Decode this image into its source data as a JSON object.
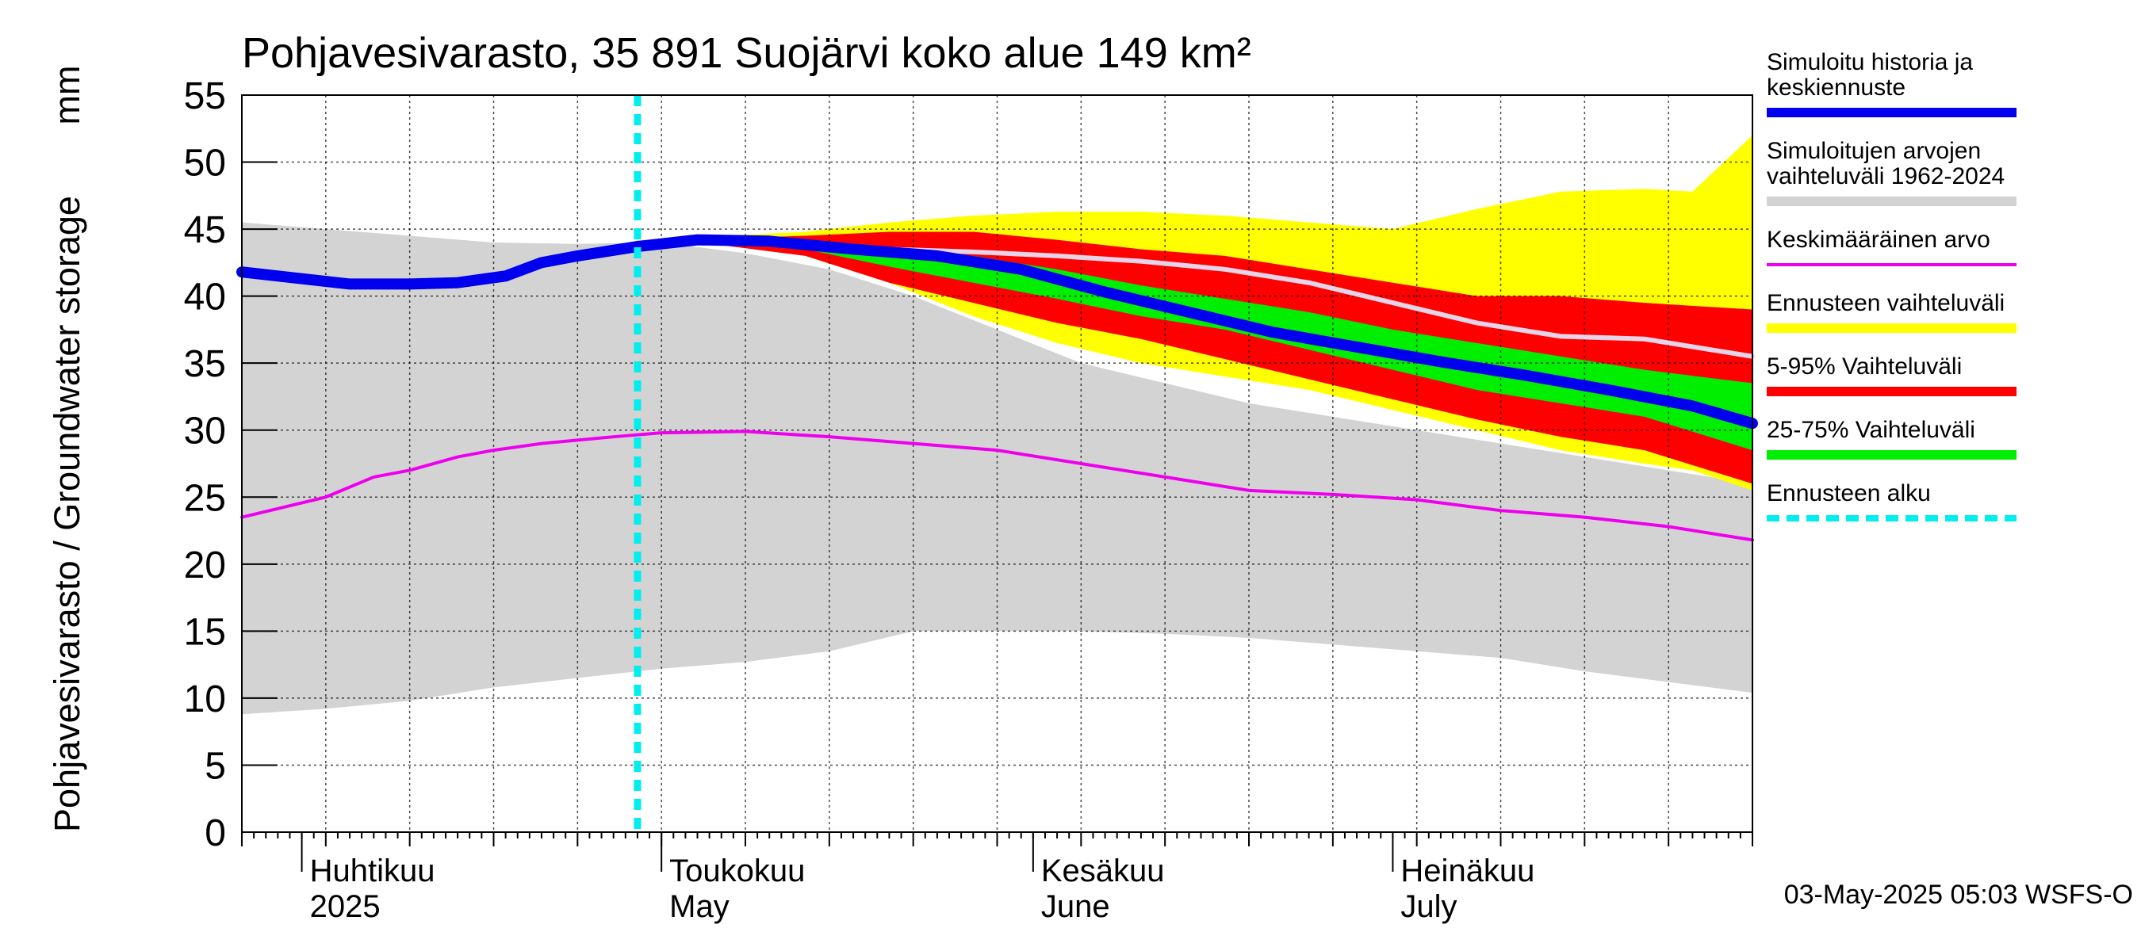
{
  "chart_data": {
    "type": "area",
    "title": "Pohjavesivarasto, 35 891 Suojärvi koko alue 149 km²",
    "ylabel": "Pohjavesivarasto / Groundwater storage",
    "yunit": "mm",
    "ylim": [
      0,
      55
    ],
    "yticks": [
      0,
      5,
      10,
      15,
      20,
      25,
      30,
      35,
      40,
      45,
      50,
      55
    ],
    "xlim": [
      "2025-03-27",
      "2025-07-31"
    ],
    "grid": true,
    "legend_position": "right",
    "x_labels": [
      {
        "fi": "Huhtikuu",
        "en": "2025",
        "date": "2025-04-01"
      },
      {
        "fi": "Toukokuu",
        "en": "May",
        "date": "2025-05-01"
      },
      {
        "fi": "Kesäkuu",
        "en": "June",
        "date": "2025-06-01"
      },
      {
        "fi": "Heinäkuu",
        "en": "July",
        "date": "2025-07-01"
      }
    ],
    "forecast_start": "2025-04-29",
    "footer": "03-May-2025 05:03 WSFS-O",
    "legend": [
      {
        "label": "Simuloitu historia ja keskiennuste",
        "color": "#0000ee",
        "style": "thick"
      },
      {
        "label": "Simuloitujen arvojen vaihteluväli 1962-2024",
        "color": "#d3d3d3",
        "style": "thick"
      },
      {
        "label": "Keskimääräinen arvo",
        "color": "#ee00ee",
        "style": "thin"
      },
      {
        "label": "Ennusteen vaihteluväli",
        "color": "#ffff00",
        "style": "thick"
      },
      {
        "label": "5-95% Vaihteluväli",
        "color": "#ff0000",
        "style": "thick"
      },
      {
        "label": "25-75% Vaihteluväli",
        "color": "#00ee00",
        "style": "thick"
      },
      {
        "label": "Ennusteen alku",
        "color": "#00eeee",
        "style": "dashed"
      }
    ],
    "series": {
      "history_range": {
        "name": "Simuloitujen arvojen vaihteluväli 1962-2024",
        "color": "#d3d3d3",
        "x": [
          "2025-03-27",
          "2025-04-03",
          "2025-04-10",
          "2025-04-17",
          "2025-04-24",
          "2025-05-01",
          "2025-05-08",
          "2025-05-15",
          "2025-05-22",
          "2025-05-29",
          "2025-06-05",
          "2025-06-12",
          "2025-06-19",
          "2025-06-26",
          "2025-07-03",
          "2025-07-10",
          "2025-07-17",
          "2025-07-24",
          "2025-07-31"
        ],
        "upper": [
          45.5,
          45.0,
          44.5,
          44.0,
          43.9,
          44.0,
          43.2,
          42.0,
          40.0,
          37.5,
          35.0,
          33.5,
          32.0,
          31.0,
          30.0,
          29.0,
          28.0,
          27.0,
          26.0
        ],
        "lower": [
          8.8,
          9.2,
          9.8,
          10.8,
          11.5,
          12.2,
          12.7,
          13.5,
          15.0,
          15.0,
          15.0,
          14.8,
          14.5,
          14.0,
          13.5,
          13.0,
          12.0,
          11.2,
          10.4
        ]
      },
      "forecast_range": {
        "name": "Ennusteen vaihteluväli",
        "color": "#ffff00",
        "x": [
          "2025-04-29",
          "2025-05-06",
          "2025-05-13",
          "2025-05-20",
          "2025-05-27",
          "2025-06-03",
          "2025-06-10",
          "2025-06-17",
          "2025-06-24",
          "2025-07-01",
          "2025-07-08",
          "2025-07-15",
          "2025-07-22",
          "2025-07-26",
          "2025-07-31"
        ],
        "upper": [
          44.0,
          44.5,
          44.8,
          45.5,
          46.0,
          46.3,
          46.3,
          46.0,
          45.5,
          45.0,
          46.5,
          47.8,
          48.0,
          47.8,
          52.0
        ],
        "lower": [
          44.0,
          44.0,
          43.0,
          41.0,
          38.5,
          36.5,
          35.0,
          34.0,
          33.0,
          31.5,
          30.0,
          28.5,
          27.5,
          27.0,
          25.5
        ]
      },
      "p5_95": {
        "name": "5-95% Vaihteluväli",
        "color": "#ff0000",
        "x": [
          "2025-04-29",
          "2025-05-06",
          "2025-05-13",
          "2025-05-20",
          "2025-05-27",
          "2025-06-03",
          "2025-06-10",
          "2025-06-17",
          "2025-06-24",
          "2025-07-01",
          "2025-07-08",
          "2025-07-15",
          "2025-07-22",
          "2025-07-31"
        ],
        "upper": [
          44.0,
          44.3,
          44.5,
          44.8,
          44.8,
          44.2,
          43.5,
          43.0,
          42.0,
          41.0,
          40.0,
          40.0,
          39.5,
          39.0
        ],
        "lower": [
          44.0,
          43.8,
          43.0,
          41.0,
          39.5,
          38.0,
          36.8,
          35.3,
          33.8,
          32.3,
          30.8,
          29.5,
          28.5,
          26.0
        ]
      },
      "p25_75": {
        "name": "25-75% Vaihteluväli",
        "color": "#00ee00",
        "x": [
          "2025-04-29",
          "2025-05-06",
          "2025-05-13",
          "2025-05-20",
          "2025-05-27",
          "2025-06-03",
          "2025-06-10",
          "2025-06-17",
          "2025-06-24",
          "2025-07-01",
          "2025-07-08",
          "2025-07-15",
          "2025-07-22",
          "2025-07-31"
        ],
        "upper": [
          44.0,
          44.2,
          44.0,
          43.5,
          43.0,
          42.0,
          40.8,
          39.8,
          38.8,
          37.5,
          36.5,
          35.5,
          34.5,
          33.5
        ],
        "lower": [
          44.0,
          44.0,
          43.5,
          42.2,
          41.0,
          39.8,
          38.5,
          37.5,
          36.0,
          34.5,
          33.0,
          32.0,
          31.0,
          28.5
        ]
      },
      "forecast_mean": {
        "name": "Simuloitu historia ja keskiennuste",
        "color": "#0000ee",
        "x": [
          "2025-03-27",
          "2025-04-01",
          "2025-04-05",
          "2025-04-10",
          "2025-04-14",
          "2025-04-18",
          "2025-04-21",
          "2025-04-24",
          "2025-04-29",
          "2025-05-04",
          "2025-05-10",
          "2025-05-17",
          "2025-05-24",
          "2025-05-31",
          "2025-06-07",
          "2025-06-14",
          "2025-06-21",
          "2025-06-28",
          "2025-07-05",
          "2025-07-12",
          "2025-07-19",
          "2025-07-26",
          "2025-07-31"
        ],
        "y": [
          41.8,
          41.3,
          40.9,
          40.9,
          41.0,
          41.5,
          42.5,
          43.0,
          43.7,
          44.2,
          44.1,
          43.5,
          43.0,
          42.0,
          40.3,
          38.8,
          37.3,
          36.2,
          35.1,
          34.1,
          33.0,
          31.8,
          30.5
        ]
      },
      "mean_value": {
        "name": "Keskimääräinen arvo",
        "color": "#ee00ee",
        "x": [
          "2025-03-27",
          "2025-04-03",
          "2025-04-07",
          "2025-04-10",
          "2025-04-14",
          "2025-04-17",
          "2025-04-21",
          "2025-04-27",
          "2025-05-01",
          "2025-05-08",
          "2025-05-15",
          "2025-05-22",
          "2025-05-29",
          "2025-06-05",
          "2025-06-12",
          "2025-06-19",
          "2025-06-26",
          "2025-07-03",
          "2025-07-10",
          "2025-07-17",
          "2025-07-24",
          "2025-07-31"
        ],
        "y": [
          23.5,
          25.0,
          26.5,
          27.0,
          28.0,
          28.5,
          29.0,
          29.5,
          29.8,
          29.9,
          29.5,
          29.0,
          28.5,
          27.5,
          26.5,
          25.5,
          25.2,
          24.8,
          24.0,
          23.5,
          22.8,
          21.8
        ]
      },
      "mean_of_simulations": {
        "name": "",
        "color": "#e8d4e8",
        "x": [
          "2025-04-29",
          "2025-05-06",
          "2025-05-13",
          "2025-05-20",
          "2025-05-27",
          "2025-06-03",
          "2025-06-10",
          "2025-06-17",
          "2025-06-24",
          "2025-07-01",
          "2025-07-08",
          "2025-07-15",
          "2025-07-22",
          "2025-07-31"
        ],
        "y": [
          44.0,
          44.2,
          44.0,
          43.5,
          43.3,
          43.0,
          42.6,
          42.0,
          41.0,
          39.5,
          38.0,
          37.0,
          36.8,
          35.5
        ]
      }
    }
  }
}
